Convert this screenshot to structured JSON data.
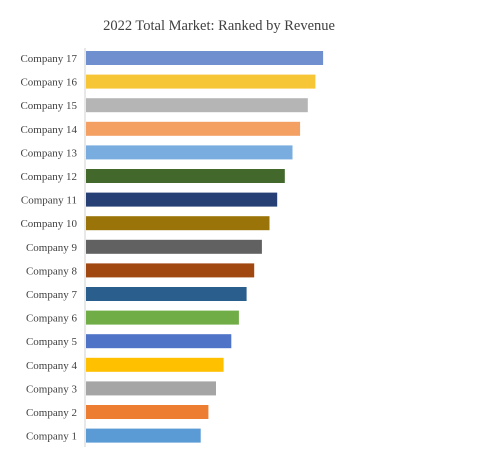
{
  "chart_data": {
    "type": "bar",
    "orientation": "horizontal",
    "title": "2022 Total Market: Ranked by Revenue",
    "xlabel": "",
    "ylabel": "",
    "grid": false,
    "legend": "none",
    "xlim": [
      0,
      17
    ],
    "categories": [
      "Company 17",
      "Company 16",
      "Company 15",
      "Company 14",
      "Company 13",
      "Company 12",
      "Company 11",
      "Company 10",
      "Company 9",
      "Company 8",
      "Company 7",
      "Company 6",
      "Company 5",
      "Company 4",
      "Company 3",
      "Company 2",
      "Company 1"
    ],
    "values": [
      15.5,
      15.0,
      14.5,
      14.0,
      13.5,
      13.0,
      12.5,
      12.0,
      11.5,
      11.0,
      10.5,
      10.0,
      9.5,
      9.0,
      8.5,
      8.0,
      7.5
    ],
    "colors": [
      "#6F8FCF",
      "#F7C636",
      "#B5B5B5",
      "#F4A063",
      "#7AADDF",
      "#42692B",
      "#263F75",
      "#9A7408",
      "#616161",
      "#A14710",
      "#2A5E8C",
      "#70AD47",
      "#4F73C7",
      "#FFC000",
      "#A5A5A5",
      "#ED7D31",
      "#5B9BD5"
    ]
  }
}
